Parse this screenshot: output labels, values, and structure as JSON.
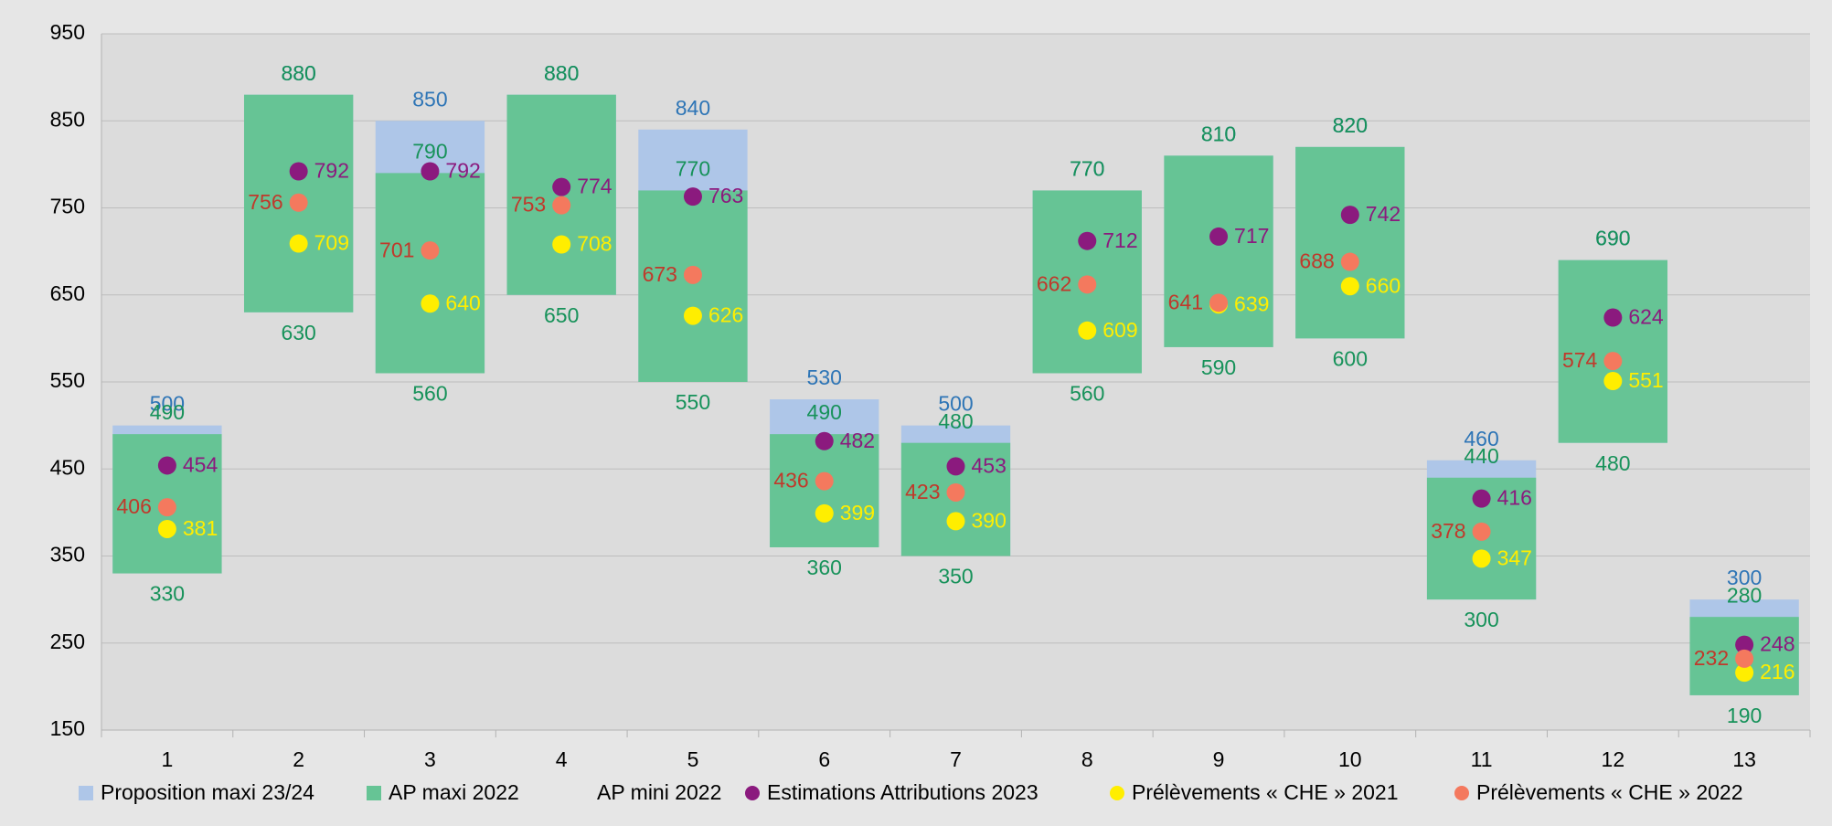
{
  "chart_data": {
    "type": "floating_bar",
    "categories": [
      "1",
      "2",
      "3",
      "4",
      "5",
      "6",
      "7",
      "8",
      "9",
      "10",
      "11",
      "12",
      "13"
    ],
    "series": [
      {
        "name": "Proposition maxi 23/24",
        "style": "bar",
        "color": "#aec6e8",
        "label_color": "#2e75b6",
        "label_position": "above",
        "values": [
          500,
          880,
          850,
          880,
          840,
          530,
          500,
          770,
          810,
          820,
          460,
          690,
          300
        ]
      },
      {
        "name": "AP maxi 2022",
        "style": "bar",
        "color": "#66c495",
        "label_color": "#17925a",
        "label_position": "above",
        "values": [
          490,
          880,
          790,
          880,
          770,
          490,
          480,
          770,
          810,
          820,
          440,
          690,
          280
        ]
      },
      {
        "name": "AP mini 2022",
        "style": "base",
        "color": "none",
        "label_color": "#17925a",
        "label_position": "below",
        "values": [
          330,
          630,
          560,
          650,
          550,
          360,
          350,
          560,
          590,
          600,
          300,
          480,
          190
        ]
      },
      {
        "name": "Estimations Attributions 2023",
        "style": "dot",
        "color": "#8b1a7e",
        "label_color": "#8b1a7e",
        "label_position": "right",
        "values": [
          454,
          792,
          792,
          774,
          763,
          482,
          453,
          712,
          717,
          742,
          416,
          624,
          248
        ]
      },
      {
        "name": "Prélèvements « CHE » 2021",
        "style": "dot",
        "color": "#ffee00",
        "label_color": "#ffee00",
        "label_position": "right",
        "values": [
          381,
          709,
          640,
          708,
          626,
          399,
          390,
          609,
          639,
          660,
          347,
          551,
          216
        ]
      },
      {
        "name": "Prélèvements « CHE » 2022",
        "style": "dot",
        "color": "#f4795e",
        "label_color": "#c0392b",
        "label_position": "left",
        "values": [
          406,
          756,
          701,
          753,
          673,
          436,
          423,
          662,
          641,
          688,
          378,
          574,
          232
        ]
      }
    ],
    "ylim": [
      150,
      950
    ],
    "yticks": [
      150,
      250,
      350,
      450,
      550,
      650,
      750,
      850,
      950
    ],
    "grid": true,
    "legend": "bottom"
  }
}
